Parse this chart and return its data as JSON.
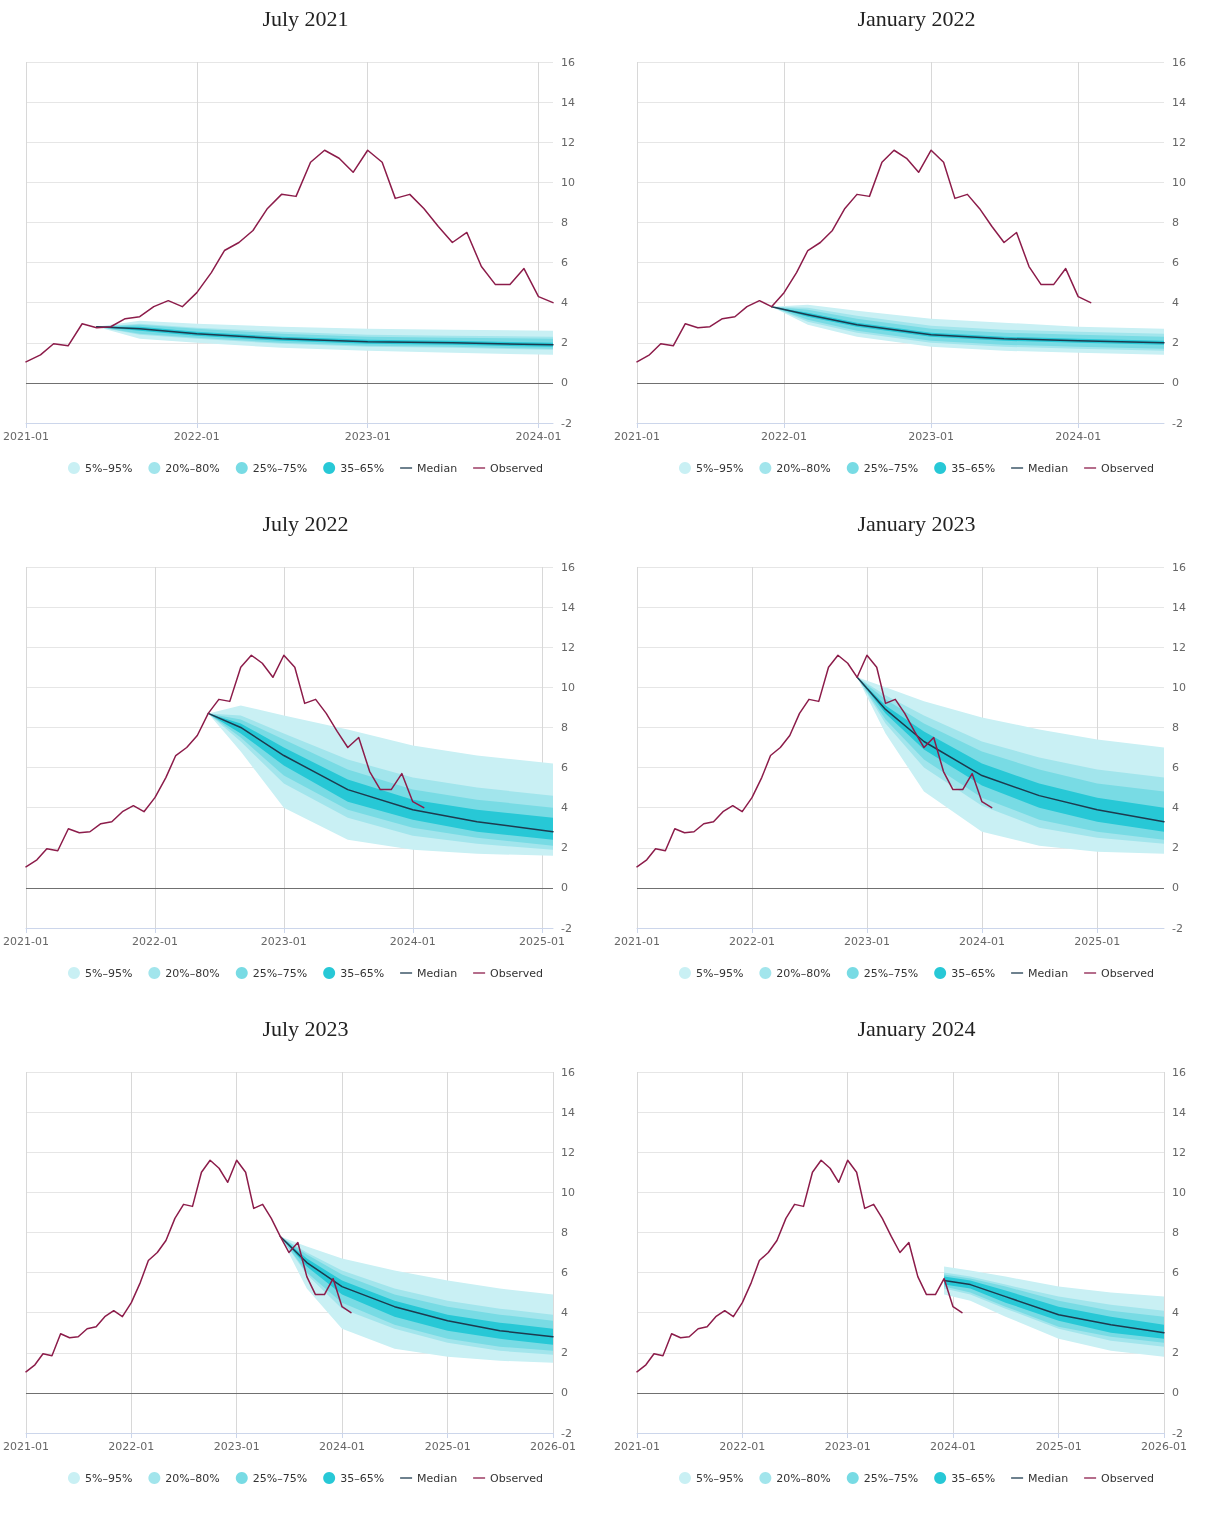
{
  "chart_data": [
    {
      "type": "line",
      "title": "July 2021",
      "xlim": [
        "2021-01",
        "2024-02"
      ],
      "xticks": [
        "2021-01",
        "2022-01",
        "2023-01",
        "2024-01"
      ],
      "ylim": [
        -2,
        16
      ],
      "yticks": [
        -2,
        0,
        2,
        4,
        6,
        8,
        10,
        12,
        14,
        16
      ],
      "grid": true,
      "legend": "bottom",
      "marker": "none",
      "line_style": "solid",
      "ref_lines": [
        {
          "axis": "y",
          "value": 0,
          "color": "#707070"
        }
      ],
      "series": [
        {
          "name": "5%–95%",
          "color": "#c9f0f4",
          "x": [
            "2021-06",
            "2021-09",
            "2022-01",
            "2022-07",
            "2023-01",
            "2023-07",
            "2024-02"
          ],
          "values": [
            null,
            null,
            null,
            null,
            null,
            null,
            null
          ],
          "lower": [
            2.8,
            2.2,
            2.0,
            1.75,
            1.6,
            1.5,
            1.4
          ],
          "upper": [
            2.8,
            3.1,
            2.95,
            2.8,
            2.7,
            2.65,
            2.6
          ]
        },
        {
          "name": "20%–80%",
          "color": "#a2e5ec",
          "x": [
            "2021-06",
            "2021-09",
            "2022-01",
            "2022-07",
            "2023-01",
            "2023-07",
            "2024-02"
          ],
          "values": [
            null,
            null,
            null,
            null,
            null,
            null,
            null
          ],
          "lower": [
            2.8,
            2.4,
            2.2,
            1.95,
            1.8,
            1.75,
            1.65
          ],
          "upper": [
            2.8,
            2.95,
            2.75,
            2.55,
            2.4,
            2.35,
            2.3
          ]
        },
        {
          "name": "25%–75%",
          "color": "#78dbe4",
          "x": [
            "2021-06",
            "2021-09",
            "2022-01",
            "2022-07",
            "2023-01",
            "2023-07",
            "2024-02"
          ],
          "values": [
            null,
            null,
            null,
            null,
            null,
            null,
            null
          ],
          "lower": [
            2.8,
            2.45,
            2.25,
            2.0,
            1.85,
            1.8,
            1.7
          ],
          "upper": [
            2.8,
            2.9,
            2.7,
            2.45,
            2.3,
            2.25,
            2.2
          ]
        },
        {
          "name": "35–65%",
          "color": "#27c8d6",
          "x": [
            "2021-06",
            "2021-09",
            "2022-01",
            "2022-07",
            "2023-01",
            "2023-07",
            "2024-02"
          ],
          "values": [
            null,
            null,
            null,
            null,
            null,
            null,
            null
          ],
          "lower": [
            2.8,
            2.6,
            2.35,
            2.1,
            1.95,
            1.9,
            1.8
          ],
          "upper": [
            2.8,
            2.8,
            2.55,
            2.3,
            2.15,
            2.1,
            2.0
          ]
        },
        {
          "name": "Median",
          "color": "#1d3b4f",
          "x": [
            "2021-06",
            "2021-09",
            "2022-01",
            "2022-07",
            "2023-01",
            "2023-07",
            "2024-02"
          ],
          "values": [
            2.8,
            2.7,
            2.45,
            2.2,
            2.05,
            2.0,
            1.9
          ]
        },
        {
          "name": "Observed",
          "color": "#8c1c4a",
          "x": [
            "2021-01",
            "2021-02",
            "2021-03",
            "2021-04",
            "2021-05",
            "2021-06",
            "2021-07",
            "2021-08",
            "2021-09",
            "2021-10",
            "2021-11",
            "2021-12",
            "2022-01",
            "2022-02",
            "2022-03",
            "2022-04",
            "2022-05",
            "2022-06",
            "2022-07",
            "2022-08",
            "2022-09",
            "2022-10",
            "2022-11",
            "2022-12",
            "2023-01",
            "2023-02",
            "2023-03",
            "2023-04",
            "2023-05",
            "2023-06",
            "2023-07",
            "2023-08",
            "2023-09",
            "2023-10",
            "2023-11",
            "2023-12",
            "2024-01",
            "2024-02"
          ],
          "values": [
            1.05,
            1.4,
            1.95,
            1.85,
            2.95,
            2.75,
            2.8,
            3.2,
            3.3,
            3.8,
            4.1,
            3.8,
            4.5,
            5.5,
            6.6,
            7.0,
            7.6,
            8.7,
            9.4,
            9.3,
            11.0,
            11.6,
            11.2,
            10.5,
            11.6,
            11.0,
            9.2,
            9.4,
            8.7,
            7.8,
            7.0,
            7.5,
            5.8,
            4.9,
            4.9,
            5.7,
            4.3,
            4.0
          ]
        }
      ]
    },
    {
      "type": "line",
      "title": "January 2022",
      "xlim": [
        "2021-01",
        "2024-08"
      ],
      "xticks": [
        "2021-01",
        "2022-01",
        "2023-01",
        "2024-01"
      ],
      "ylim": [
        -2,
        16
      ],
      "yticks": [
        -2,
        0,
        2,
        4,
        6,
        8,
        10,
        12,
        14,
        16
      ],
      "grid": true,
      "legend": "bottom",
      "marker": "none",
      "line_style": "solid",
      "ref_lines": [
        {
          "axis": "y",
          "value": 0,
          "color": "#707070"
        }
      ],
      "series": [
        {
          "name": "5%–95%",
          "color": "#c9f0f4",
          "x": [
            "2021-12",
            "2022-03",
            "2022-07",
            "2023-01",
            "2023-07",
            "2024-01",
            "2024-08"
          ],
          "values": [
            null,
            null,
            null,
            null,
            null,
            null,
            null
          ],
          "lower": [
            3.8,
            2.9,
            2.3,
            1.8,
            1.6,
            1.5,
            1.4
          ],
          "upper": [
            3.8,
            3.9,
            3.6,
            3.2,
            3.0,
            2.8,
            2.7
          ]
        },
        {
          "name": "20%–80%",
          "color": "#a2e5ec",
          "x": [
            "2021-12",
            "2022-03",
            "2022-07",
            "2023-01",
            "2023-07",
            "2024-01",
            "2024-08"
          ],
          "values": [
            null,
            null,
            null,
            null,
            null,
            null,
            null
          ],
          "lower": [
            3.8,
            3.05,
            2.5,
            2.0,
            1.8,
            1.7,
            1.6
          ],
          "upper": [
            3.8,
            3.75,
            3.35,
            2.85,
            2.65,
            2.55,
            2.45
          ]
        },
        {
          "name": "25%–75%",
          "color": "#78dbe4",
          "x": [
            "2021-12",
            "2022-03",
            "2022-07",
            "2023-01",
            "2023-07",
            "2024-01",
            "2024-08"
          ],
          "values": [
            null,
            null,
            null,
            null,
            null,
            null,
            null
          ],
          "lower": [
            3.8,
            3.15,
            2.6,
            2.1,
            1.9,
            1.8,
            1.7
          ],
          "upper": [
            3.8,
            3.65,
            3.2,
            2.7,
            2.5,
            2.4,
            2.3
          ]
        },
        {
          "name": "35–65%",
          "color": "#27c8d6",
          "x": [
            "2021-12",
            "2022-03",
            "2022-07",
            "2023-01",
            "2023-07",
            "2024-01",
            "2024-08"
          ],
          "values": [
            null,
            null,
            null,
            null,
            null,
            null,
            null
          ],
          "lower": [
            3.8,
            3.3,
            2.8,
            2.3,
            2.1,
            2.0,
            1.9
          ],
          "upper": [
            3.8,
            3.5,
            3.0,
            2.5,
            2.3,
            2.2,
            2.1
          ]
        },
        {
          "name": "Median",
          "color": "#1d3b4f",
          "x": [
            "2021-12",
            "2022-03",
            "2022-07",
            "2023-01",
            "2023-07",
            "2024-01",
            "2024-08"
          ],
          "values": [
            3.8,
            3.4,
            2.9,
            2.4,
            2.2,
            2.1,
            2.0
          ]
        },
        {
          "name": "Observed",
          "color": "#8c1c4a",
          "x": [
            "2021-01",
            "2021-02",
            "2021-03",
            "2021-04",
            "2021-05",
            "2021-06",
            "2021-07",
            "2021-08",
            "2021-09",
            "2021-10",
            "2021-11",
            "2021-12",
            "2022-01",
            "2022-02",
            "2022-03",
            "2022-04",
            "2022-05",
            "2022-06",
            "2022-07",
            "2022-08",
            "2022-09",
            "2022-10",
            "2022-11",
            "2022-12",
            "2023-01",
            "2023-02",
            "2023-03",
            "2023-04",
            "2023-05",
            "2023-06",
            "2023-07",
            "2023-08",
            "2023-09",
            "2023-10",
            "2023-11",
            "2023-12",
            "2024-01",
            "2024-02"
          ],
          "values": [
            1.05,
            1.4,
            1.95,
            1.85,
            2.95,
            2.75,
            2.8,
            3.2,
            3.3,
            3.8,
            4.1,
            3.8,
            4.5,
            5.5,
            6.6,
            7.0,
            7.6,
            8.7,
            9.4,
            9.3,
            11.0,
            11.6,
            11.2,
            10.5,
            11.6,
            11.0,
            9.2,
            9.4,
            8.7,
            7.8,
            7.0,
            7.5,
            5.8,
            4.9,
            4.9,
            5.7,
            4.3,
            4.0
          ]
        }
      ]
    },
    {
      "type": "line",
      "title": "July 2022",
      "xlim": [
        "2021-01",
        "2025-02"
      ],
      "xticks": [
        "2021-01",
        "2022-01",
        "2023-01",
        "2024-01",
        "2025-01"
      ],
      "ylim": [
        -2,
        16
      ],
      "yticks": [
        -2,
        0,
        2,
        4,
        6,
        8,
        10,
        12,
        14,
        16
      ],
      "grid": true,
      "legend": "bottom",
      "marker": "none",
      "line_style": "solid",
      "ref_lines": [
        {
          "axis": "y",
          "value": 0,
          "color": "#707070"
        }
      ],
      "series": [
        {
          "name": "5%–95%",
          "color": "#c9f0f4",
          "x": [
            "2022-06",
            "2022-09",
            "2023-01",
            "2023-07",
            "2024-01",
            "2024-07",
            "2025-02"
          ],
          "values": [
            null,
            null,
            null,
            null,
            null,
            null,
            null
          ],
          "lower": [
            8.7,
            6.8,
            4.0,
            2.4,
            1.9,
            1.7,
            1.6
          ],
          "upper": [
            8.7,
            9.1,
            8.6,
            7.9,
            7.1,
            6.6,
            6.2
          ]
        },
        {
          "name": "20%–80%",
          "color": "#a2e5ec",
          "x": [
            "2022-06",
            "2022-09",
            "2023-01",
            "2023-07",
            "2024-01",
            "2024-07",
            "2025-02"
          ],
          "values": [
            null,
            null,
            null,
            null,
            null,
            null,
            null
          ],
          "lower": [
            8.7,
            7.3,
            5.2,
            3.5,
            2.6,
            2.2,
            1.9
          ],
          "upper": [
            8.7,
            8.6,
            7.7,
            6.4,
            5.5,
            5.0,
            4.6
          ]
        },
        {
          "name": "25%–75%",
          "color": "#78dbe4",
          "x": [
            "2022-06",
            "2022-09",
            "2023-01",
            "2023-07",
            "2024-01",
            "2024-07",
            "2025-02"
          ],
          "values": [
            null,
            null,
            null,
            null,
            null,
            null,
            null
          ],
          "lower": [
            8.7,
            7.5,
            5.6,
            3.9,
            3.0,
            2.5,
            2.1
          ],
          "upper": [
            8.7,
            8.4,
            7.4,
            5.9,
            4.9,
            4.4,
            4.0
          ]
        },
        {
          "name": "35–65%",
          "color": "#27c8d6",
          "x": [
            "2022-06",
            "2022-09",
            "2023-01",
            "2023-07",
            "2024-01",
            "2024-07",
            "2025-02"
          ],
          "values": [
            null,
            null,
            null,
            null,
            null,
            null,
            null
          ],
          "lower": [
            8.7,
            7.7,
            6.1,
            4.3,
            3.4,
            2.8,
            2.4
          ],
          "upper": [
            8.7,
            8.2,
            7.0,
            5.4,
            4.4,
            3.9,
            3.5
          ]
        },
        {
          "name": "Median",
          "color": "#1d3b4f",
          "x": [
            "2022-06",
            "2022-09",
            "2023-01",
            "2023-07",
            "2024-01",
            "2024-07",
            "2025-02"
          ],
          "values": [
            8.7,
            8.0,
            6.6,
            4.9,
            3.9,
            3.3,
            2.8
          ]
        },
        {
          "name": "Observed",
          "color": "#8c1c4a",
          "x": [
            "2021-01",
            "2021-02",
            "2021-03",
            "2021-04",
            "2021-05",
            "2021-06",
            "2021-07",
            "2021-08",
            "2021-09",
            "2021-10",
            "2021-11",
            "2021-12",
            "2022-01",
            "2022-02",
            "2022-03",
            "2022-04",
            "2022-05",
            "2022-06",
            "2022-07",
            "2022-08",
            "2022-09",
            "2022-10",
            "2022-11",
            "2022-12",
            "2023-01",
            "2023-02",
            "2023-03",
            "2023-04",
            "2023-05",
            "2023-06",
            "2023-07",
            "2023-08",
            "2023-09",
            "2023-10",
            "2023-11",
            "2023-12",
            "2024-01",
            "2024-02"
          ],
          "values": [
            1.05,
            1.4,
            1.95,
            1.85,
            2.95,
            2.75,
            2.8,
            3.2,
            3.3,
            3.8,
            4.1,
            3.8,
            4.5,
            5.5,
            6.6,
            7.0,
            7.6,
            8.7,
            9.4,
            9.3,
            11.0,
            11.6,
            11.2,
            10.5,
            11.6,
            11.0,
            9.2,
            9.4,
            8.7,
            7.8,
            7.0,
            7.5,
            5.8,
            4.9,
            4.9,
            5.7,
            4.3,
            4.0
          ]
        }
      ]
    },
    {
      "type": "line",
      "title": "January 2023",
      "xlim": [
        "2021-01",
        "2025-08"
      ],
      "xticks": [
        "2021-01",
        "2022-01",
        "2023-01",
        "2024-01",
        "2025-01"
      ],
      "ylim": [
        -2,
        16
      ],
      "yticks": [
        -2,
        0,
        2,
        4,
        6,
        8,
        10,
        12,
        14,
        16
      ],
      "grid": true,
      "legend": "bottom",
      "marker": "none",
      "line_style": "solid",
      "ref_lines": [
        {
          "axis": "y",
          "value": 0,
          "color": "#707070"
        }
      ],
      "series": [
        {
          "name": "5%–95%",
          "color": "#c9f0f4",
          "x": [
            "2022-12",
            "2023-03",
            "2023-07",
            "2024-01",
            "2024-07",
            "2025-01",
            "2025-08"
          ],
          "values": [
            null,
            null,
            null,
            null,
            null,
            null,
            null
          ],
          "lower": [
            10.5,
            7.7,
            4.8,
            2.8,
            2.1,
            1.8,
            1.7
          ],
          "upper": [
            10.5,
            10.0,
            9.3,
            8.5,
            7.9,
            7.4,
            7.0
          ]
        },
        {
          "name": "20%–80%",
          "color": "#a2e5ec",
          "x": [
            "2022-12",
            "2023-03",
            "2023-07",
            "2024-01",
            "2024-07",
            "2025-01",
            "2025-08"
          ],
          "values": [
            null,
            null,
            null,
            null,
            null,
            null,
            null
          ],
          "lower": [
            10.5,
            8.2,
            6.0,
            4.1,
            3.0,
            2.5,
            2.2
          ],
          "upper": [
            10.5,
            9.6,
            8.6,
            7.3,
            6.5,
            5.9,
            5.5
          ]
        },
        {
          "name": "25%–75%",
          "color": "#78dbe4",
          "x": [
            "2022-12",
            "2023-03",
            "2023-07",
            "2024-01",
            "2024-07",
            "2025-01",
            "2025-08"
          ],
          "values": [
            null,
            null,
            null,
            null,
            null,
            null,
            null
          ],
          "lower": [
            10.5,
            8.4,
            6.4,
            4.5,
            3.4,
            2.8,
            2.4
          ],
          "upper": [
            10.5,
            9.4,
            8.2,
            6.8,
            5.9,
            5.2,
            4.8
          ]
        },
        {
          "name": "35–65%",
          "color": "#27c8d6",
          "x": [
            "2022-12",
            "2023-03",
            "2023-07",
            "2024-01",
            "2024-07",
            "2025-01",
            "2025-08"
          ],
          "values": [
            null,
            null,
            null,
            null,
            null,
            null,
            null
          ],
          "lower": [
            10.5,
            8.7,
            6.9,
            5.1,
            4.0,
            3.3,
            2.8
          ],
          "upper": [
            10.5,
            9.1,
            7.8,
            6.2,
            5.2,
            4.5,
            4.0
          ]
        },
        {
          "name": "Median",
          "color": "#1d3b4f",
          "x": [
            "2022-12",
            "2023-03",
            "2023-07",
            "2024-01",
            "2024-07",
            "2025-01",
            "2025-08"
          ],
          "values": [
            10.5,
            8.9,
            7.3,
            5.6,
            4.6,
            3.9,
            3.3
          ]
        },
        {
          "name": "Observed",
          "color": "#8c1c4a",
          "x": [
            "2021-01",
            "2021-02",
            "2021-03",
            "2021-04",
            "2021-05",
            "2021-06",
            "2021-07",
            "2021-08",
            "2021-09",
            "2021-10",
            "2021-11",
            "2021-12",
            "2022-01",
            "2022-02",
            "2022-03",
            "2022-04",
            "2022-05",
            "2022-06",
            "2022-07",
            "2022-08",
            "2022-09",
            "2022-10",
            "2022-11",
            "2022-12",
            "2023-01",
            "2023-02",
            "2023-03",
            "2023-04",
            "2023-05",
            "2023-06",
            "2023-07",
            "2023-08",
            "2023-09",
            "2023-10",
            "2023-11",
            "2023-12",
            "2024-01",
            "2024-02"
          ],
          "values": [
            1.05,
            1.4,
            1.95,
            1.85,
            2.95,
            2.75,
            2.8,
            3.2,
            3.3,
            3.8,
            4.1,
            3.8,
            4.5,
            5.5,
            6.6,
            7.0,
            7.6,
            8.7,
            9.4,
            9.3,
            11.0,
            11.6,
            11.2,
            10.5,
            11.6,
            11.0,
            9.2,
            9.4,
            8.7,
            7.8,
            7.0,
            7.5,
            5.8,
            4.9,
            4.9,
            5.7,
            4.3,
            4.0
          ]
        }
      ]
    },
    {
      "type": "line",
      "title": "July 2023",
      "xlim": [
        "2021-01",
        "2026-01"
      ],
      "xticks": [
        "2021-01",
        "2022-01",
        "2023-01",
        "2024-01",
        "2025-01",
        "2026-01"
      ],
      "ylim": [
        -2,
        16
      ],
      "yticks": [
        -2,
        0,
        2,
        4,
        6,
        8,
        10,
        12,
        14,
        16
      ],
      "grid": true,
      "legend": "bottom",
      "marker": "none",
      "line_style": "solid",
      "ref_lines": [
        {
          "axis": "y",
          "value": 0,
          "color": "#707070"
        }
      ],
      "series": [
        {
          "name": "5%–95%",
          "color": "#c9f0f4",
          "x": [
            "2023-06",
            "2023-09",
            "2024-01",
            "2024-07",
            "2025-01",
            "2025-07",
            "2026-01"
          ],
          "values": [
            null,
            null,
            null,
            null,
            null,
            null,
            null
          ],
          "lower": [
            7.8,
            5.2,
            3.2,
            2.2,
            1.8,
            1.6,
            1.5
          ],
          "upper": [
            7.8,
            7.3,
            6.7,
            6.1,
            5.6,
            5.2,
            4.9
          ]
        },
        {
          "name": "20%–80%",
          "color": "#a2e5ec",
          "x": [
            "2023-06",
            "2023-09",
            "2024-01",
            "2024-07",
            "2025-01",
            "2025-07",
            "2026-01"
          ],
          "values": [
            null,
            null,
            null,
            null,
            null,
            null,
            null
          ],
          "lower": [
            7.8,
            5.9,
            4.2,
            3.2,
            2.5,
            2.1,
            1.9
          ],
          "upper": [
            7.8,
            7.0,
            6.1,
            5.2,
            4.6,
            4.2,
            3.9
          ]
        },
        {
          "name": "25%–75%",
          "color": "#78dbe4",
          "x": [
            "2023-06",
            "2023-09",
            "2024-01",
            "2024-07",
            "2025-01",
            "2025-07",
            "2026-01"
          ],
          "values": [
            null,
            null,
            null,
            null,
            null,
            null,
            null
          ],
          "lower": [
            7.8,
            6.0,
            4.5,
            3.4,
            2.7,
            2.3,
            2.1
          ],
          "upper": [
            7.8,
            6.9,
            5.9,
            4.9,
            4.3,
            3.9,
            3.6
          ]
        },
        {
          "name": "35–65%",
          "color": "#27c8d6",
          "x": [
            "2023-06",
            "2023-09",
            "2024-01",
            "2024-07",
            "2025-01",
            "2025-07",
            "2026-01"
          ],
          "values": [
            null,
            null,
            null,
            null,
            null,
            null,
            null
          ],
          "lower": [
            7.8,
            6.3,
            4.9,
            3.8,
            3.1,
            2.7,
            2.4
          ],
          "upper": [
            7.8,
            6.7,
            5.6,
            4.6,
            3.9,
            3.5,
            3.2
          ]
        },
        {
          "name": "Median",
          "color": "#1d3b4f",
          "x": [
            "2023-06",
            "2023-09",
            "2024-01",
            "2024-07",
            "2025-01",
            "2025-07",
            "2026-01"
          ],
          "values": [
            7.8,
            6.5,
            5.3,
            4.3,
            3.6,
            3.1,
            2.8
          ]
        },
        {
          "name": "Observed",
          "color": "#8c1c4a",
          "x": [
            "2021-01",
            "2021-02",
            "2021-03",
            "2021-04",
            "2021-05",
            "2021-06",
            "2021-07",
            "2021-08",
            "2021-09",
            "2021-10",
            "2021-11",
            "2021-12",
            "2022-01",
            "2022-02",
            "2022-03",
            "2022-04",
            "2022-05",
            "2022-06",
            "2022-07",
            "2022-08",
            "2022-09",
            "2022-10",
            "2022-11",
            "2022-12",
            "2023-01",
            "2023-02",
            "2023-03",
            "2023-04",
            "2023-05",
            "2023-06",
            "2023-07",
            "2023-08",
            "2023-09",
            "2023-10",
            "2023-11",
            "2023-12",
            "2024-01",
            "2024-02"
          ],
          "values": [
            1.05,
            1.4,
            1.95,
            1.85,
            2.95,
            2.75,
            2.8,
            3.2,
            3.3,
            3.8,
            4.1,
            3.8,
            4.5,
            5.5,
            6.6,
            7.0,
            7.6,
            8.7,
            9.4,
            9.3,
            11.0,
            11.6,
            11.2,
            10.5,
            11.6,
            11.0,
            9.2,
            9.4,
            8.7,
            7.8,
            7.0,
            7.5,
            5.8,
            4.9,
            4.9,
            5.7,
            4.3,
            4.0
          ]
        }
      ]
    },
    {
      "type": "line",
      "title": "January 2024",
      "xlim": [
        "2021-01",
        "2026-01"
      ],
      "xticks": [
        "2021-01",
        "2022-01",
        "2023-01",
        "2024-01",
        "2025-01",
        "2026-01"
      ],
      "ylim": [
        -2,
        16
      ],
      "yticks": [
        -2,
        0,
        2,
        4,
        6,
        8,
        10,
        12,
        14,
        16
      ],
      "grid": true,
      "legend": "bottom",
      "marker": "none",
      "line_style": "solid",
      "ref_lines": [
        {
          "axis": "y",
          "value": 0,
          "color": "#707070"
        }
      ],
      "series": [
        {
          "name": "5%–95%",
          "color": "#c9f0f4",
          "x": [
            "2023-12",
            "2024-03",
            "2024-07",
            "2025-01",
            "2025-07",
            "2026-01"
          ],
          "values": [
            null,
            null,
            null,
            null,
            null,
            null
          ],
          "lower": [
            4.9,
            4.6,
            3.8,
            2.7,
            2.1,
            1.8
          ],
          "upper": [
            6.3,
            6.1,
            5.8,
            5.3,
            5.0,
            4.8
          ]
        },
        {
          "name": "20%–80%",
          "color": "#a2e5ec",
          "x": [
            "2023-12",
            "2024-03",
            "2024-07",
            "2025-01",
            "2025-07",
            "2026-01"
          ],
          "values": [
            null,
            null,
            null,
            null,
            null,
            null
          ],
          "lower": [
            5.2,
            4.9,
            4.2,
            3.2,
            2.6,
            2.3
          ],
          "upper": [
            6.0,
            5.8,
            5.4,
            4.8,
            4.4,
            4.1
          ]
        },
        {
          "name": "25%–75%",
          "color": "#78dbe4",
          "x": [
            "2023-12",
            "2024-03",
            "2024-07",
            "2025-01",
            "2025-07",
            "2026-01"
          ],
          "values": [
            null,
            null,
            null,
            null,
            null,
            null
          ],
          "lower": [
            5.3,
            5.0,
            4.3,
            3.3,
            2.8,
            2.5
          ],
          "upper": [
            5.9,
            5.7,
            5.3,
            4.6,
            4.1,
            3.8
          ]
        },
        {
          "name": "35–65%",
          "color": "#27c8d6",
          "x": [
            "2023-12",
            "2024-03",
            "2024-07",
            "2025-01",
            "2025-07",
            "2026-01"
          ],
          "values": [
            null,
            null,
            null,
            null,
            null,
            null
          ],
          "lower": [
            5.4,
            5.2,
            4.5,
            3.6,
            3.0,
            2.7
          ],
          "upper": [
            5.8,
            5.6,
            5.1,
            4.3,
            3.8,
            3.4
          ]
        },
        {
          "name": "Median",
          "color": "#1d3b4f",
          "x": [
            "2023-12",
            "2024-03",
            "2024-07",
            "2025-01",
            "2025-07",
            "2026-01"
          ],
          "values": [
            5.6,
            5.4,
            4.8,
            3.9,
            3.4,
            3.0
          ]
        },
        {
          "name": "Observed",
          "color": "#8c1c4a",
          "x": [
            "2021-01",
            "2021-02",
            "2021-03",
            "2021-04",
            "2021-05",
            "2021-06",
            "2021-07",
            "2021-08",
            "2021-09",
            "2021-10",
            "2021-11",
            "2021-12",
            "2022-01",
            "2022-02",
            "2022-03",
            "2022-04",
            "2022-05",
            "2022-06",
            "2022-07",
            "2022-08",
            "2022-09",
            "2022-10",
            "2022-11",
            "2022-12",
            "2023-01",
            "2023-02",
            "2023-03",
            "2023-04",
            "2023-05",
            "2023-06",
            "2023-07",
            "2023-08",
            "2023-09",
            "2023-10",
            "2023-11",
            "2023-12",
            "2024-01",
            "2024-02"
          ],
          "values": [
            1.05,
            1.4,
            1.95,
            1.85,
            2.95,
            2.75,
            2.8,
            3.2,
            3.3,
            3.8,
            4.1,
            3.8,
            4.5,
            5.5,
            6.6,
            7.0,
            7.6,
            8.7,
            9.4,
            9.3,
            11.0,
            11.6,
            11.2,
            10.5,
            11.6,
            11.0,
            9.2,
            9.4,
            8.7,
            7.8,
            7.0,
            7.5,
            5.8,
            4.9,
            4.9,
            5.7,
            4.3,
            4.0
          ]
        }
      ]
    }
  ]
}
